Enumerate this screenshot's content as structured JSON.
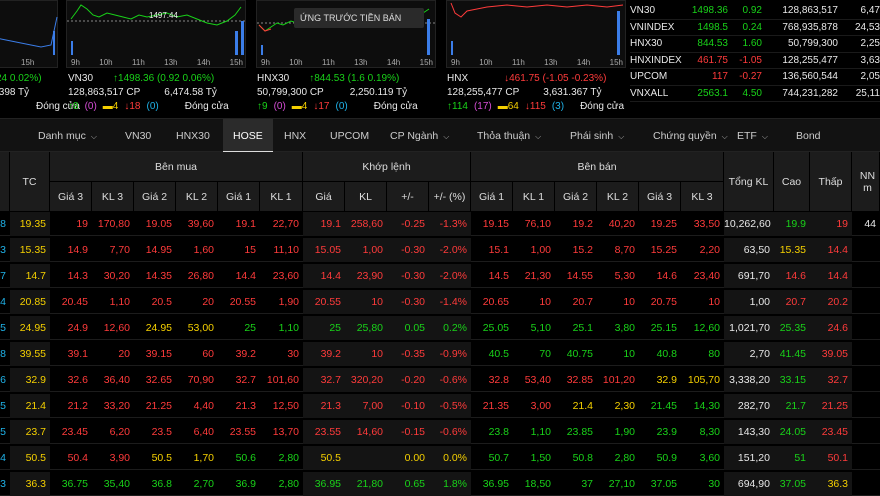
{
  "tooltip": "ỨNG TRƯỚC TIỀN BÁN",
  "charts": [
    {
      "ticks": [
        "9h",
        "10h",
        "11h",
        "13h",
        "14h",
        "15h"
      ],
      "value_label": ""
    },
    {
      "ticks": [
        "9h",
        "10h",
        "11h",
        "13h",
        "14h",
        "15h"
      ],
      "value_label": "1497.44"
    },
    {
      "ticks": [
        "9h",
        "10h",
        "11h",
        "13h",
        "14h",
        "15h"
      ],
      "value_label": ""
    },
    {
      "ticks": [
        "9h",
        "10h",
        "11h",
        "13h",
        "14h",
        "15h"
      ],
      "value_label": ""
    }
  ],
  "indices": [
    {
      "line1_name": "",
      "line1_val": "24  0.02%)",
      "line2": ".398  Tỷ",
      "line3_status": "Đóng cửa"
    },
    {
      "name": "VN30",
      "change": "↑1498.36 (0.92  0.06%)",
      "volume": "128,863,517  CP",
      "value": "6,474.58  Tỷ",
      "up": "8",
      "ref": "(0)",
      "ref_icon": "▬",
      "ref_count": "4",
      "down": "18",
      "down_ref": "(0)",
      "status": "Đóng cửa"
    },
    {
      "name": "HNX30",
      "change": "↑844.53 (1.6  0.19%)",
      "volume": "50,799,300  CP",
      "value": "2,250.119  Tỷ",
      "up": "9",
      "ref": "(0)",
      "ref_count": "4",
      "down": "17",
      "down_ref": "(0)",
      "status": "Đóng cửa"
    },
    {
      "name": "HNX",
      "change": "↓461.75 (-1.05  -0.23%)",
      "volume": "128,255,477  CP",
      "value": "3,631.367  Tỷ",
      "up": "114",
      "ref": "(17)",
      "ref_count": "64",
      "down": "115",
      "down_ref": "(3)",
      "status": "Đóng cửa"
    }
  ],
  "summary": [
    {
      "name": "VN30",
      "price": "1498.36",
      "chg": "0.92",
      "vol": "128,863,517",
      "val": "6,47",
      "color": "g"
    },
    {
      "name": "VNINDEX",
      "price": "1498.5",
      "chg": "0.24",
      "vol": "768,935,878",
      "val": "24,53",
      "color": "g"
    },
    {
      "name": "HNX30",
      "price": "844.53",
      "chg": "1.60",
      "vol": "50,799,300",
      "val": "2,25",
      "color": "g"
    },
    {
      "name": "HNXINDEX",
      "price": "461.75",
      "chg": "-1.05",
      "vol": "128,255,477",
      "val": "3,63",
      "color": "r"
    },
    {
      "name": "UPCOM",
      "price": "117",
      "chg": "-0.27",
      "vol": "136,560,544",
      "val": "2,05",
      "color": "r"
    },
    {
      "name": "VNXALL",
      "price": "2563.1",
      "chg": "4.50",
      "vol": "744,231,282",
      "val": "25,11",
      "color": "g"
    }
  ],
  "tabs": [
    "Danh mục",
    "VN30",
    "HNX30",
    "HOSE",
    "HNX",
    "UPCOM",
    "CP Ngành",
    "Thỏa thuận",
    "Phái sinh",
    "Chứng quyền",
    "ETF",
    "Bond"
  ],
  "headers": {
    "tc": "TC",
    "ben_mua": "Bên mua",
    "khop_lenh": "Khớp lệnh",
    "ben_ban": "Bên bán",
    "tong_kl": "Tổng KL",
    "cao": "Cao",
    "thap": "Thấp",
    "nn": "NN m",
    "gia3": "Giá 3",
    "kl3": "KL 3",
    "gia2": "Giá 2",
    "kl2": "KL 2",
    "gia1": "Giá 1",
    "kl1": "KL 1",
    "gia": "Giá",
    "kl": "KL",
    "pm": "+/-",
    "pct": "+/- (%)",
    "sgia1": "Giá 1",
    "skl1": "KL 1",
    "sgia2": "Giá 2",
    "skl2": "KL 2",
    "sgia3": "Giá 3",
    "skl3": "KL 3"
  },
  "rows": [
    {
      "c": "8",
      "tc": "19.35",
      "b": [
        "19",
        "170,80",
        "19.05",
        "39,60",
        "19.1",
        "22,70"
      ],
      "m": [
        "19.1",
        "258,60",
        "-0.25",
        "-1.3%"
      ],
      "s": [
        "19.15",
        "76,10",
        "19.2",
        "40,20",
        "19.25",
        "33,50"
      ],
      "tot": "10,262,60",
      "hi": "19.9",
      "lo": "19",
      "nn": "44",
      "cols": {
        "b": "r",
        "m": "r",
        "s": [
          "r",
          "r",
          "r",
          "r",
          "r",
          "r"
        ],
        "hi": "g",
        "lo": "r"
      }
    },
    {
      "c": "3",
      "tc": "15.35",
      "b": [
        "14.9",
        "7,70",
        "14.95",
        "1,60",
        "15",
        "11,10"
      ],
      "m": [
        "15.05",
        "1,00",
        "-0.30",
        "-2.0%"
      ],
      "s": [
        "15.1",
        "1,00",
        "15.2",
        "8,70",
        "15.25",
        "2,20"
      ],
      "tot": "63,50",
      "hi": "15.35",
      "lo": "14.4",
      "nn": "",
      "cols": {
        "b": "r",
        "m": "r",
        "s": [
          "r",
          "r",
          "r",
          "r",
          "r",
          "r"
        ],
        "hi": "y",
        "lo": "r"
      }
    },
    {
      "c": "7",
      "tc": "14.7",
      "b": [
        "14.3",
        "30,20",
        "14.35",
        "26,80",
        "14.4",
        "23,60"
      ],
      "m": [
        "14.4",
        "23,90",
        "-0.30",
        "-2.0%"
      ],
      "s": [
        "14.5",
        "21,30",
        "14.55",
        "5,30",
        "14.6",
        "23,40"
      ],
      "tot": "691,70",
      "hi": "14.6",
      "lo": "14.4",
      "nn": "",
      "cols": {
        "b": "r",
        "m": "r",
        "s": [
          "r",
          "r",
          "r",
          "r",
          "r",
          "r"
        ],
        "hi": "r",
        "lo": "r"
      }
    },
    {
      "c": "4",
      "tc": "20.85",
      "b": [
        "20.45",
        "1,10",
        "20.5",
        "20",
        "20.55",
        "1,90"
      ],
      "m": [
        "20.55",
        "10",
        "-0.30",
        "-1.4%"
      ],
      "s": [
        "20.65",
        "10",
        "20.7",
        "10",
        "20.75",
        "10"
      ],
      "tot": "1,00",
      "hi": "20.7",
      "lo": "20.2",
      "nn": "",
      "cols": {
        "b": "r",
        "m": "r",
        "s": [
          "r",
          "r",
          "r",
          "r",
          "r",
          "r"
        ],
        "hi": "r",
        "lo": "r"
      }
    },
    {
      "c": "5",
      "tc": "24.95",
      "b": [
        "24.9",
        "12,60",
        "24.95",
        "53,00",
        "25",
        "1,10"
      ],
      "m": [
        "25",
        "25,80",
        "0.05",
        "0.2%"
      ],
      "s": [
        "25.05",
        "5,10",
        "25.1",
        "3,80",
        "25.15",
        "12,60"
      ],
      "tot": "1,021,70",
      "hi": "25.35",
      "lo": "24.6",
      "nn": "",
      "cols": {
        "b": "mix1",
        "m": "g",
        "s": [
          "g",
          "g",
          "g",
          "g",
          "g",
          "g"
        ],
        "hi": "g",
        "lo": "r"
      }
    },
    {
      "c": "8",
      "tc": "39.55",
      "b": [
        "39.1",
        "20",
        "39.15",
        "60",
        "39.2",
        "30"
      ],
      "m": [
        "39.2",
        "10",
        "-0.35",
        "-0.9%"
      ],
      "s": [
        "40.5",
        "70",
        "40.75",
        "10",
        "40.8",
        "80"
      ],
      "tot": "2,70",
      "hi": "41.45",
      "lo": "39.05",
      "nn": "",
      "cols": {
        "b": "r",
        "m": "r",
        "s": [
          "g",
          "g",
          "g",
          "g",
          "g",
          "g"
        ],
        "hi": "g",
        "lo": "r"
      }
    },
    {
      "c": "6",
      "tc": "32.9",
      "b": [
        "32.6",
        "36,40",
        "32.65",
        "70,90",
        "32.7",
        "101,60"
      ],
      "m": [
        "32.7",
        "320,20",
        "-0.20",
        "-0.6%"
      ],
      "s": [
        "32.8",
        "53,40",
        "32.85",
        "101,20",
        "32.9",
        "105,70"
      ],
      "tot": "3,338,20",
      "hi": "33.15",
      "lo": "32.7",
      "nn": "",
      "cols": {
        "b": "r",
        "m": "r",
        "s": [
          "r",
          "r",
          "r",
          "r",
          "y",
          "y"
        ],
        "hi": "g",
        "lo": "r"
      }
    },
    {
      "c": "5",
      "tc": "21.4",
      "b": [
        "21.2",
        "33,20",
        "21.25",
        "4,40",
        "21.3",
        "12,50"
      ],
      "m": [
        "21.3",
        "7,00",
        "-0.10",
        "-0.5%"
      ],
      "s": [
        "21.35",
        "3,00",
        "21.4",
        "2,30",
        "21.45",
        "14,30"
      ],
      "tot": "282,70",
      "hi": "21.7",
      "lo": "21.25",
      "nn": "",
      "cols": {
        "b": "r",
        "m": "r",
        "s": [
          "r",
          "r",
          "y",
          "y",
          "g",
          "g"
        ],
        "hi": "g",
        "lo": "r"
      }
    },
    {
      "c": "5",
      "tc": "23.7",
      "b": [
        "23.45",
        "6,20",
        "23.5",
        "6,40",
        "23.55",
        "13,70"
      ],
      "m": [
        "23.55",
        "14,60",
        "-0.15",
        "-0.6%"
      ],
      "s": [
        "23.8",
        "1,10",
        "23.85",
        "1,90",
        "23.9",
        "8,30"
      ],
      "tot": "143,30",
      "hi": "24.05",
      "lo": "23.45",
      "nn": "",
      "cols": {
        "b": "r",
        "m": "r",
        "s": [
          "g",
          "g",
          "g",
          "g",
          "g",
          "g"
        ],
        "hi": "g",
        "lo": "r"
      }
    },
    {
      "c": "4",
      "tc": "50.5",
      "b": [
        "50.4",
        "3,90",
        "50.5",
        "1,70",
        "50.6",
        "2,80"
      ],
      "m": [
        "50.5",
        "",
        "0.00",
        "0.0%"
      ],
      "s": [
        "50.7",
        "1,50",
        "50.8",
        "2,80",
        "50.9",
        "3,60"
      ],
      "tot": "151,20",
      "hi": "51",
      "lo": "50.1",
      "nn": "",
      "cols": {
        "b": "mix2",
        "m": "y",
        "s": [
          "g",
          "g",
          "g",
          "g",
          "g",
          "g"
        ],
        "hi": "g",
        "lo": "r"
      }
    },
    {
      "c": "3",
      "tc": "36.3",
      "b": [
        "36.75",
        "35,40",
        "36.8",
        "2,70",
        "36.9",
        "2,80"
      ],
      "m": [
        "36.95",
        "21,80",
        "0.65",
        "1.8%"
      ],
      "s": [
        "36.95",
        "18,50",
        "37",
        "27,10",
        "37.05",
        "30"
      ],
      "tot": "694,90",
      "hi": "37.05",
      "lo": "36.3",
      "nn": "",
      "cols": {
        "b": "g",
        "m": "g",
        "s": [
          "g",
          "g",
          "g",
          "g",
          "g",
          "g"
        ],
        "hi": "g",
        "lo": "y"
      }
    }
  ]
}
